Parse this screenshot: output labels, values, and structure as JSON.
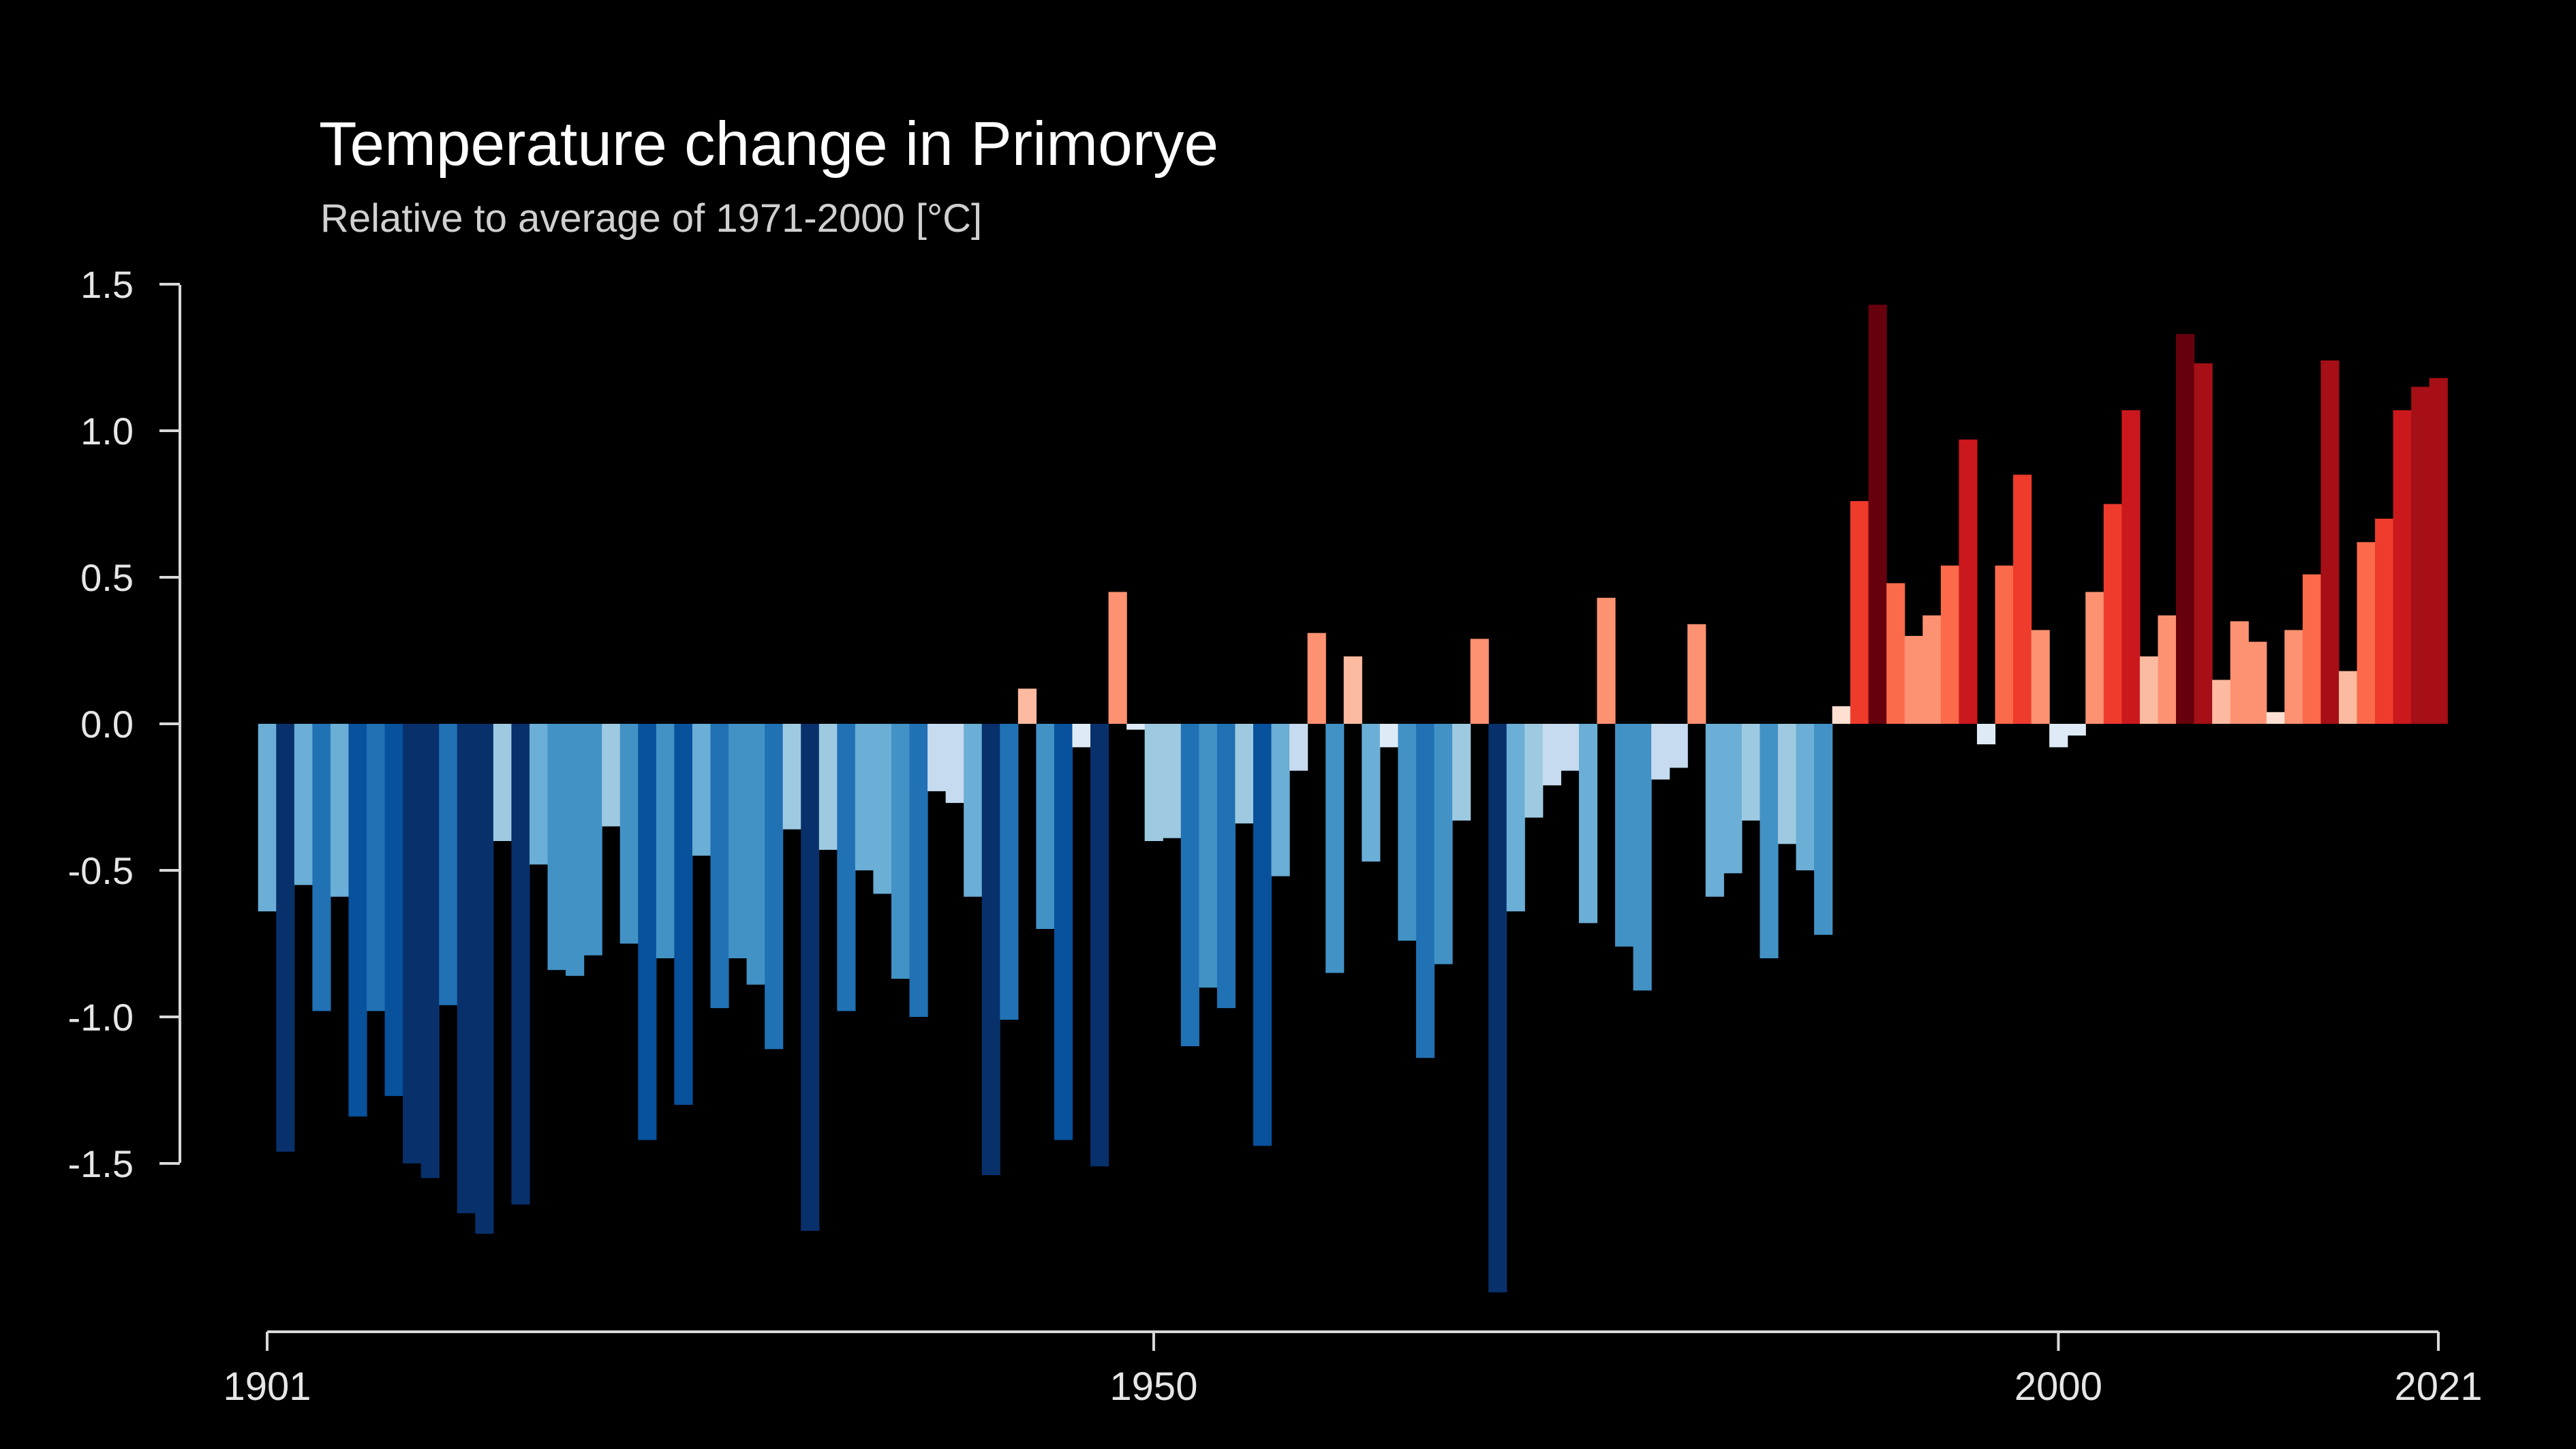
{
  "chart_data": {
    "type": "bar",
    "title": "Temperature change in Primorye",
    "subtitle": "Relative to average of 1971-2000  [°C]",
    "x_start": 1901,
    "x_end": 2021,
    "x_tick_labels": [
      "1901",
      "1950",
      "2000",
      "2021"
    ],
    "y_tick_labels": [
      "1.5",
      "1.0",
      "0.5",
      "0.0",
      "-0.5",
      "-1.0",
      "-1.5"
    ],
    "ylim": [
      -2.0,
      1.6
    ],
    "grid": false,
    "legend": "none",
    "background_color": "#000000",
    "axis_color": "#d9d9d9",
    "years": [
      1901,
      1902,
      1903,
      1904,
      1905,
      1906,
      1907,
      1908,
      1909,
      1910,
      1911,
      1912,
      1913,
      1914,
      1915,
      1916,
      1917,
      1918,
      1919,
      1920,
      1921,
      1922,
      1923,
      1924,
      1925,
      1926,
      1927,
      1928,
      1929,
      1930,
      1931,
      1932,
      1933,
      1934,
      1935,
      1936,
      1937,
      1938,
      1939,
      1940,
      1941,
      1942,
      1943,
      1944,
      1945,
      1946,
      1947,
      1948,
      1949,
      1950,
      1951,
      1952,
      1953,
      1954,
      1955,
      1956,
      1957,
      1958,
      1959,
      1960,
      1961,
      1962,
      1963,
      1964,
      1965,
      1966,
      1967,
      1968,
      1969,
      1970,
      1971,
      1972,
      1973,
      1974,
      1975,
      1976,
      1977,
      1978,
      1979,
      1980,
      1981,
      1982,
      1983,
      1984,
      1985,
      1986,
      1987,
      1988,
      1989,
      1990,
      1991,
      1992,
      1993,
      1994,
      1995,
      1996,
      1997,
      1998,
      1999,
      2000,
      2001,
      2002,
      2003,
      2004,
      2005,
      2006,
      2007,
      2008,
      2009,
      2010,
      2011,
      2012,
      2013,
      2014,
      2015,
      2016,
      2017,
      2018,
      2019,
      2020,
      2021
    ],
    "values": [
      -0.64,
      -1.46,
      -0.55,
      -0.98,
      -0.59,
      -1.34,
      -0.98,
      -1.27,
      -1.5,
      -1.55,
      -0.96,
      -1.67,
      -1.74,
      -0.4,
      -1.64,
      -0.48,
      -0.84,
      -0.86,
      -0.79,
      -0.35,
      -0.75,
      -1.42,
      -0.8,
      -1.3,
      -0.45,
      -0.97,
      -0.8,
      -0.89,
      -1.11,
      -0.36,
      -1.73,
      -0.43,
      -0.98,
      -0.5,
      -0.58,
      -0.87,
      -1.0,
      -0.23,
      -0.27,
      -0.59,
      -1.54,
      -1.01,
      0.12,
      -0.7,
      -1.42,
      -0.08,
      -1.51,
      0.45,
      -0.02,
      -0.4,
      -0.39,
      -1.1,
      -0.9,
      -0.97,
      -0.34,
      -1.44,
      -0.52,
      -0.16,
      0.31,
      -0.85,
      0.23,
      -0.47,
      -0.08,
      -0.74,
      -1.14,
      -0.82,
      -0.33,
      0.29,
      -1.94,
      -0.64,
      -0.32,
      -0.21,
      -0.16,
      -0.68,
      0.43,
      -0.76,
      -0.91,
      -0.19,
      -0.15,
      0.34,
      -0.59,
      -0.51,
      -0.33,
      -0.8,
      -0.41,
      -0.5,
      -0.72,
      0.06,
      0.76,
      1.43,
      0.48,
      0.3,
      0.37,
      0.54,
      0.97,
      -0.07,
      0.54,
      0.85,
      0.32,
      -0.08,
      -0.04,
      0.45,
      0.75,
      1.07,
      0.23,
      0.37,
      1.33,
      1.23,
      0.15,
      0.35,
      0.28,
      0.04,
      0.32,
      0.51,
      1.24,
      0.18,
      0.62,
      0.7,
      1.07,
      1.15,
      1.18
    ]
  }
}
